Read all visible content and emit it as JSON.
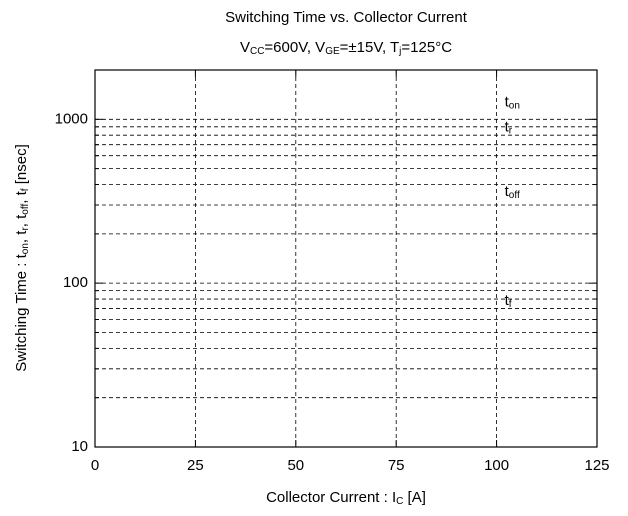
{
  "chart_data": {
    "type": "line",
    "title": "Switching Time vs. Collector Current",
    "subtitle": [
      "V",
      "CC",
      "=600V, V",
      "GE",
      "=±15V, T",
      "j",
      "=125°C"
    ],
    "x_label": [
      "Collector Current  :  I",
      "C",
      "  [A]"
    ],
    "y_label": [
      "Switching Time : t",
      "on",
      ",  t",
      "r",
      ",  t",
      "off",
      ",  t",
      "f",
      "  [nsec]"
    ],
    "xlim": [
      0,
      125
    ],
    "xticks": [
      0,
      25,
      50,
      75,
      100,
      125
    ],
    "ylim": [
      10,
      2000
    ],
    "yticks": [
      10,
      100,
      1000
    ],
    "yminor": [
      20,
      30,
      40,
      50,
      60,
      70,
      80,
      90,
      200,
      300,
      400,
      500,
      600,
      700,
      800,
      900
    ],
    "log_y": true,
    "grid": true,
    "annotations": [
      {
        "text": "t",
        "sub": "on",
        "x": 102,
        "y": 1270
      },
      {
        "text": "t",
        "sub": "r",
        "x": 102,
        "y": 890
      },
      {
        "text": "t",
        "sub": "off",
        "x": 102,
        "y": 360
      },
      {
        "text": "t",
        "sub": "f",
        "x": 102,
        "y": 78
      }
    ]
  }
}
